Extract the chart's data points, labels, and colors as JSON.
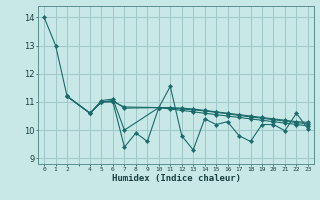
{
  "xlabel": "Humidex (Indice chaleur)",
  "bg_color": "#c8e8e8",
  "grid_color": "#a0c8c8",
  "line_color": "#1a6b6b",
  "xlim": [
    -0.5,
    23.5
  ],
  "ylim": [
    8.8,
    14.4
  ],
  "xtick_labels": [
    "0",
    "1",
    "2",
    "",
    "4",
    "5",
    "6",
    "7",
    "8",
    "9",
    "10",
    "11",
    "12",
    "13",
    "14",
    "15",
    "16",
    "17",
    "18",
    "19",
    "20",
    "21",
    "22",
    "23"
  ],
  "yticks": [
    9,
    10,
    11,
    12,
    13,
    14
  ],
  "series": [
    [
      14.0,
      13.0,
      11.2,
      null,
      10.6,
      11.0,
      11.0,
      9.4,
      9.9,
      9.6,
      10.8,
      11.55,
      9.8,
      9.3,
      10.4,
      10.2,
      10.3,
      9.8,
      9.6,
      10.2,
      10.2,
      9.98,
      10.6,
      10.05
    ],
    [
      null,
      null,
      11.2,
      null,
      10.6,
      11.05,
      11.1,
      10.0,
      null,
      null,
      10.8,
      10.8,
      10.78,
      10.75,
      10.7,
      10.65,
      10.6,
      10.55,
      10.5,
      10.45,
      10.4,
      10.35,
      10.3,
      10.28
    ],
    [
      null,
      null,
      11.2,
      null,
      10.6,
      11.0,
      11.05,
      10.78,
      null,
      null,
      10.8,
      10.75,
      10.7,
      10.65,
      10.6,
      10.55,
      10.5,
      10.45,
      10.4,
      10.35,
      10.3,
      10.25,
      10.2,
      10.15
    ],
    [
      null,
      null,
      11.2,
      null,
      10.6,
      11.0,
      11.02,
      10.82,
      null,
      null,
      10.8,
      10.78,
      10.75,
      10.72,
      10.68,
      10.63,
      10.58,
      10.52,
      10.47,
      10.42,
      10.37,
      10.32,
      10.27,
      10.22
    ]
  ]
}
